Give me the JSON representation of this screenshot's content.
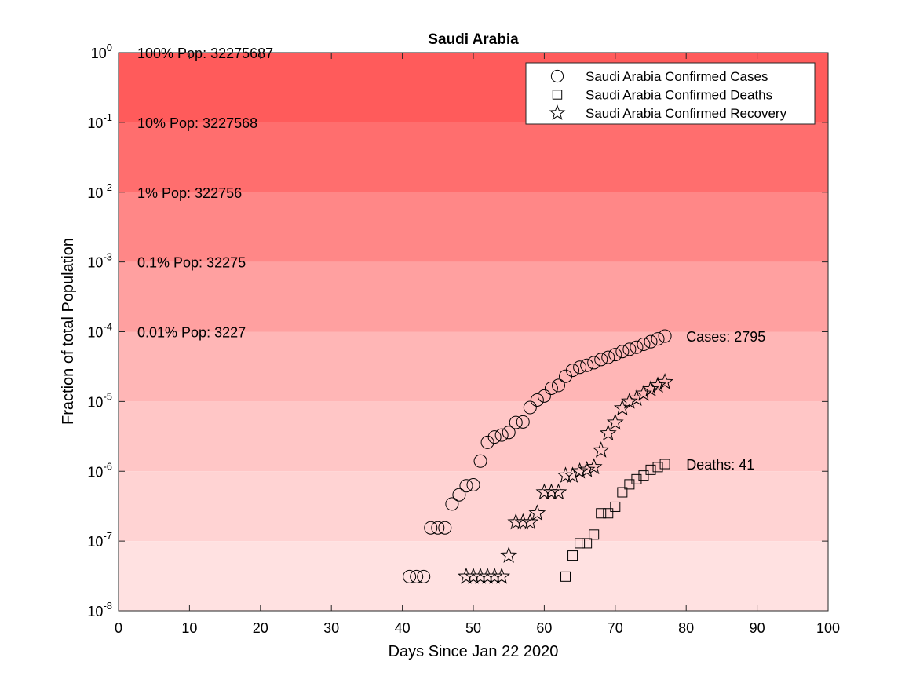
{
  "chart_data": {
    "type": "scatter",
    "title": "Saudi Arabia",
    "xlabel": "Days Since Jan 22 2020",
    "ylabel": "Fraction of total Population",
    "xlim": [
      0,
      100
    ],
    "ylim_exp": [
      -8,
      0
    ],
    "y_scale": "log",
    "x_ticks": [
      0,
      10,
      20,
      30,
      40,
      50,
      60,
      70,
      80,
      90,
      100
    ],
    "y_ticks": [
      {
        "base": "10",
        "exp": "-8"
      },
      {
        "base": "10",
        "exp": "-7"
      },
      {
        "base": "10",
        "exp": "-6"
      },
      {
        "base": "10",
        "exp": "-5"
      },
      {
        "base": "10",
        "exp": "-4"
      },
      {
        "base": "10",
        "exp": "-3"
      },
      {
        "base": "10",
        "exp": "-2"
      },
      {
        "base": "10",
        "exp": "-1"
      },
      {
        "base": "10",
        "exp": "0"
      }
    ],
    "population_bands": [
      {
        "fraction_exp": 0,
        "label": "100% Pop: 32275687",
        "color": "#ff5b5b"
      },
      {
        "fraction_exp": -1,
        "label": "10% Pop: 3227568",
        "color": "#ff6e6e"
      },
      {
        "fraction_exp": -2,
        "label": "1% Pop: 322756",
        "color": "#ff8787"
      },
      {
        "fraction_exp": -3,
        "label": "0.1% Pop: 32275",
        "color": "#ffa0a0"
      },
      {
        "fraction_exp": -4,
        "label": "0.01% Pop: 3227",
        "color": "#ffb6b6"
      },
      {
        "fraction_exp": -5,
        "label": "",
        "color": "#ffc6c6"
      },
      {
        "fraction_exp": -6,
        "label": "",
        "color": "#ffd3d3"
      },
      {
        "fraction_exp": -7,
        "label": "",
        "color": "#ffe1e1"
      }
    ],
    "legend": {
      "position": "top-right",
      "entries": [
        {
          "label": "Saudi Arabia Confirmed Cases",
          "marker": "circle"
        },
        {
          "label": "Saudi Arabia Confirmed Deaths",
          "marker": "square"
        },
        {
          "label": "Saudi Arabia Confirmed Recovery",
          "marker": "star"
        }
      ]
    },
    "annotations": [
      {
        "text": "Cases: 2795",
        "x": 80,
        "y": 8.66e-05
      },
      {
        "text": "Deaths: 41",
        "x": 80,
        "y": 1.27e-06
      }
    ],
    "series": [
      {
        "name": "Saudi Arabia Confirmed Cases",
        "marker": "circle",
        "x": [
          41,
          42,
          43,
          44,
          45,
          46,
          47,
          48,
          49,
          50,
          51,
          52,
          53,
          54,
          55,
          56,
          57,
          58,
          59,
          60,
          61,
          62,
          63,
          64,
          65,
          66,
          67,
          68,
          69,
          70,
          71,
          72,
          73,
          74,
          75,
          76,
          77
        ],
        "y": [
          3.1e-08,
          3.1e-08,
          3.1e-08,
          1.55e-07,
          1.55e-07,
          1.55e-07,
          3.4e-07,
          4.6e-07,
          6.2e-07,
          6.4e-07,
          1.4e-06,
          2.6e-06,
          3.1e-06,
          3.3e-06,
          3.6e-06,
          5e-06,
          5.1e-06,
          8.2e-06,
          1.05e-05,
          1.2e-05,
          1.55e-05,
          1.7e-05,
          2.3e-05,
          2.8e-05,
          3.1e-05,
          3.3e-05,
          3.6e-05,
          4e-05,
          4.3e-05,
          4.7e-05,
          5.2e-05,
          5.6e-05,
          6e-05,
          6.6e-05,
          7.2e-05,
          7.9e-05,
          8.66e-05
        ]
      },
      {
        "name": "Saudi Arabia Confirmed Deaths",
        "marker": "square",
        "x": [
          63,
          64,
          65,
          66,
          67,
          68,
          69,
          70,
          71,
          72,
          73,
          74,
          75,
          76,
          77
        ],
        "y": [
          3.1e-08,
          6.2e-08,
          9.3e-08,
          9.3e-08,
          1.24e-07,
          2.5e-07,
          2.5e-07,
          3.1e-07,
          5e-07,
          6.5e-07,
          7.7e-07,
          8.7e-07,
          1.05e-06,
          1.15e-06,
          1.27e-06
        ]
      },
      {
        "name": "Saudi Arabia Confirmed Recovery",
        "marker": "star",
        "x": [
          49,
          50,
          51,
          52,
          53,
          54,
          55,
          56,
          57,
          58,
          59,
          60,
          61,
          62,
          63,
          64,
          65,
          66,
          67,
          68,
          69,
          70,
          71,
          72,
          73,
          74,
          75,
          76,
          77
        ],
        "y": [
          3.1e-08,
          3.1e-08,
          3.1e-08,
          3.1e-08,
          3.1e-08,
          3.1e-08,
          6.2e-08,
          1.86e-07,
          1.86e-07,
          1.86e-07,
          2.5e-07,
          5e-07,
          5e-07,
          5e-07,
          8.7e-07,
          8.7e-07,
          1e-06,
          1.05e-06,
          1.15e-06,
          2e-06,
          3.5e-06,
          5e-06,
          8e-06,
          1e-05,
          1.1e-05,
          1.3e-05,
          1.5e-05,
          1.7e-05,
          1.9e-05
        ]
      }
    ]
  }
}
